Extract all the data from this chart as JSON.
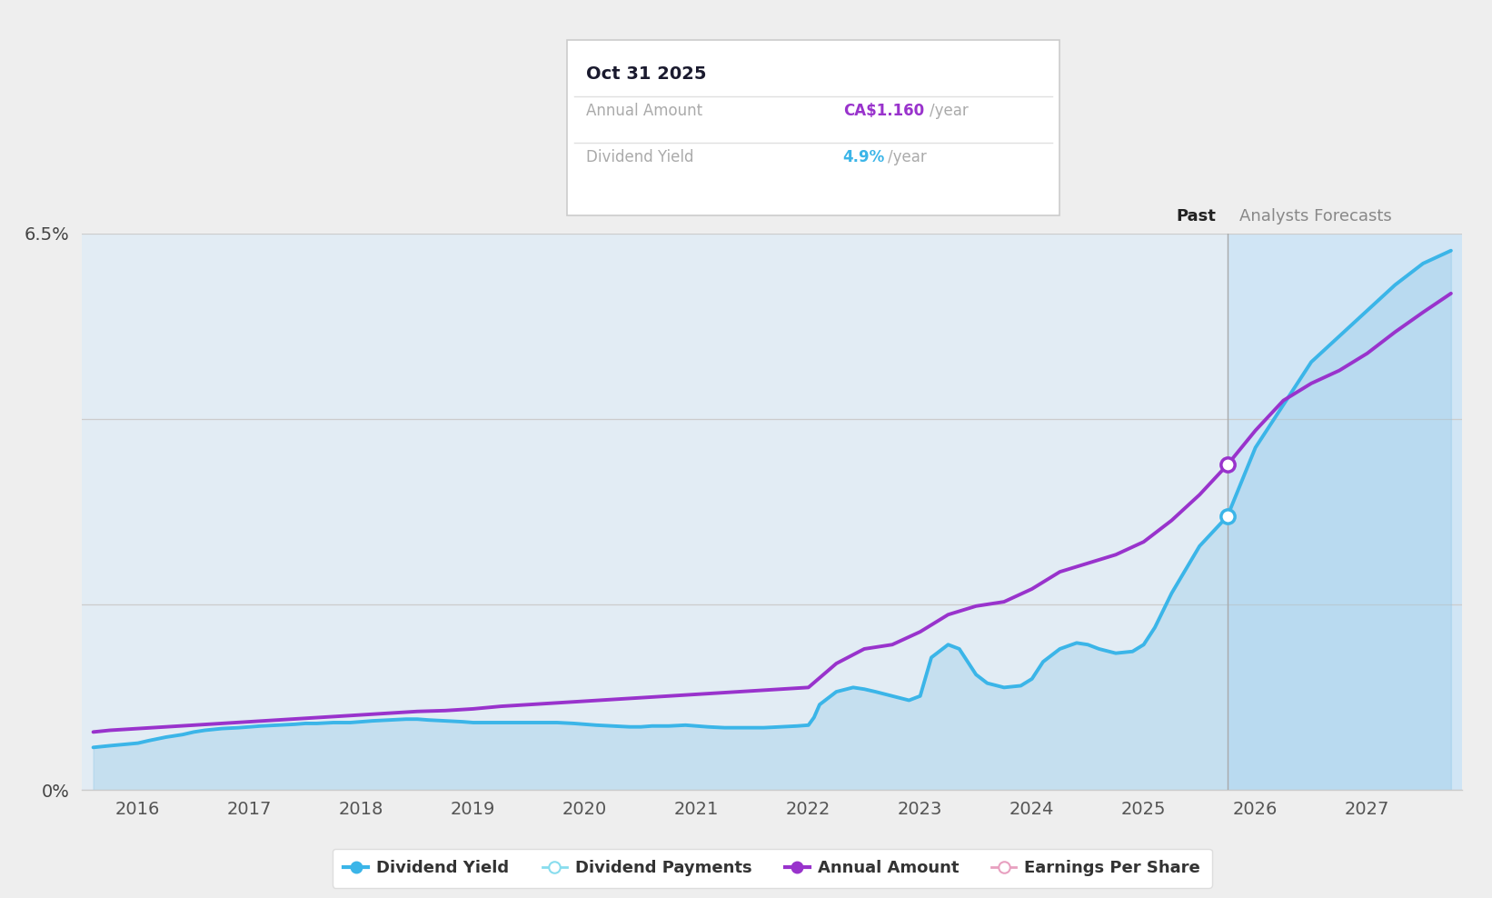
{
  "bg_color": "#eeeeee",
  "plot_bg_color": "#eeeeee",
  "dy_color": "#3bb5e8",
  "aa_color": "#9933cc",
  "past_boundary": 2025.75,
  "xlim": [
    2015.5,
    2027.85
  ],
  "ylim": [
    0.0,
    6.5
  ],
  "x_tick_positions": [
    2016,
    2017,
    2018,
    2019,
    2020,
    2021,
    2022,
    2023,
    2024,
    2025,
    2026,
    2027
  ],
  "x_tick_labels": [
    "2016",
    "2017",
    "2018",
    "2019",
    "2020",
    "2021",
    "2022",
    "2023",
    "2024",
    "2025",
    "2026",
    "2027"
  ],
  "tooltip_title": "Oct 31 2025",
  "tooltip_annual_label": "Annual Amount",
  "tooltip_annual_value": "CA$1.160",
  "tooltip_yield_label": "Dividend Yield",
  "tooltip_yield_value": "4.9%",
  "label_past": "Past",
  "label_forecast": "Analysts Forecasts",
  "legend": [
    "Dividend Yield",
    "Dividend Payments",
    "Annual Amount",
    "Earnings Per Share"
  ],
  "dy_x": [
    2015.6,
    2015.75,
    2016.0,
    2016.1,
    2016.25,
    2016.4,
    2016.5,
    2016.6,
    2016.75,
    2016.9,
    2017.0,
    2017.1,
    2017.25,
    2017.4,
    2017.5,
    2017.6,
    2017.75,
    2017.9,
    2018.0,
    2018.1,
    2018.25,
    2018.4,
    2018.5,
    2018.6,
    2018.75,
    2018.9,
    2019.0,
    2019.1,
    2019.25,
    2019.4,
    2019.5,
    2019.6,
    2019.75,
    2019.9,
    2020.0,
    2020.1,
    2020.25,
    2020.4,
    2020.5,
    2020.6,
    2020.75,
    2020.9,
    2021.0,
    2021.1,
    2021.25,
    2021.4,
    2021.5,
    2021.6,
    2021.75,
    2021.9,
    2022.0,
    2022.05,
    2022.1,
    2022.25,
    2022.4,
    2022.5,
    2022.6,
    2022.75,
    2022.9,
    2023.0,
    2023.1,
    2023.25,
    2023.35,
    2023.5,
    2023.6,
    2023.75,
    2023.9,
    2024.0,
    2024.1,
    2024.25,
    2024.4,
    2024.5,
    2024.6,
    2024.75,
    2024.9,
    2025.0,
    2025.1,
    2025.25,
    2025.5,
    2025.75,
    2026.0,
    2026.25,
    2026.5,
    2026.75,
    2027.0,
    2027.25,
    2027.5,
    2027.75
  ],
  "dy_y": [
    0.5,
    0.52,
    0.55,
    0.58,
    0.62,
    0.65,
    0.68,
    0.7,
    0.72,
    0.73,
    0.74,
    0.75,
    0.76,
    0.77,
    0.78,
    0.78,
    0.79,
    0.79,
    0.8,
    0.81,
    0.82,
    0.83,
    0.83,
    0.82,
    0.81,
    0.8,
    0.79,
    0.79,
    0.79,
    0.79,
    0.79,
    0.79,
    0.79,
    0.78,
    0.77,
    0.76,
    0.75,
    0.74,
    0.74,
    0.75,
    0.75,
    0.76,
    0.75,
    0.74,
    0.73,
    0.73,
    0.73,
    0.73,
    0.74,
    0.75,
    0.76,
    0.85,
    1.0,
    1.15,
    1.2,
    1.18,
    1.15,
    1.1,
    1.05,
    1.1,
    1.55,
    1.7,
    1.65,
    1.35,
    1.25,
    1.2,
    1.22,
    1.3,
    1.5,
    1.65,
    1.72,
    1.7,
    1.65,
    1.6,
    1.62,
    1.7,
    1.9,
    2.3,
    2.85,
    3.2,
    4.0,
    4.5,
    5.0,
    5.3,
    5.6,
    5.9,
    6.15,
    6.3
  ],
  "aa_x": [
    2015.6,
    2015.75,
    2016.0,
    2016.25,
    2016.5,
    2016.75,
    2017.0,
    2017.25,
    2017.5,
    2017.75,
    2018.0,
    2018.25,
    2018.5,
    2018.75,
    2019.0,
    2019.25,
    2019.5,
    2019.75,
    2020.0,
    2020.25,
    2020.5,
    2020.75,
    2021.0,
    2021.25,
    2021.5,
    2021.75,
    2022.0,
    2022.25,
    2022.5,
    2022.75,
    2023.0,
    2023.25,
    2023.5,
    2023.75,
    2024.0,
    2024.25,
    2024.5,
    2024.75,
    2025.0,
    2025.25,
    2025.5,
    2025.75,
    2026.0,
    2026.25,
    2026.5,
    2026.75,
    2027.0,
    2027.25,
    2027.5,
    2027.75
  ],
  "aa_y": [
    0.68,
    0.7,
    0.72,
    0.74,
    0.76,
    0.78,
    0.8,
    0.82,
    0.84,
    0.86,
    0.88,
    0.9,
    0.92,
    0.93,
    0.95,
    0.98,
    1.0,
    1.02,
    1.04,
    1.06,
    1.08,
    1.1,
    1.12,
    1.14,
    1.16,
    1.18,
    1.2,
    1.48,
    1.65,
    1.7,
    1.85,
    2.05,
    2.15,
    2.2,
    2.35,
    2.55,
    2.65,
    2.75,
    2.9,
    3.15,
    3.45,
    3.8,
    4.2,
    4.55,
    4.75,
    4.9,
    5.1,
    5.35,
    5.58,
    5.8
  ]
}
